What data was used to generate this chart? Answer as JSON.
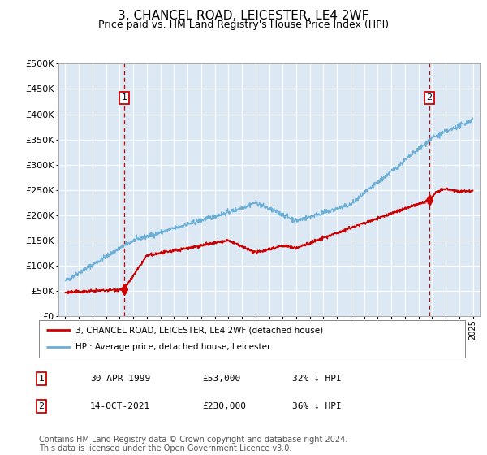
{
  "title": "3, CHANCEL ROAD, LEICESTER, LE4 2WF",
  "subtitle": "Price paid vs. HM Land Registry's House Price Index (HPI)",
  "title_fontsize": 11,
  "subtitle_fontsize": 9,
  "background_color": "#ffffff",
  "plot_bg_color": "#dce9f5",
  "grid_color": "#ffffff",
  "hpi_line_color": "#6baed6",
  "price_line_color": "#cc0000",
  "marker_color": "#cc0000",
  "dashed_line_color": "#cc0000",
  "ylim": [
    0,
    500000
  ],
  "yticks": [
    0,
    50000,
    100000,
    150000,
    200000,
    250000,
    300000,
    350000,
    400000,
    450000,
    500000
  ],
  "year_start": 1995,
  "year_end": 2025,
  "transaction1_year": 1999.33,
  "transaction1_price": 53000,
  "transaction2_year": 2021.79,
  "transaction2_price": 230000,
  "legend_label1": "3, CHANCEL ROAD, LEICESTER, LE4 2WF (detached house)",
  "legend_label2": "HPI: Average price, detached house, Leicester",
  "table_row1": [
    "1",
    "30-APR-1999",
    "£53,000",
    "32% ↓ HPI"
  ],
  "table_row2": [
    "2",
    "14-OCT-2021",
    "£230,000",
    "36% ↓ HPI"
  ],
  "footer_text": "Contains HM Land Registry data © Crown copyright and database right 2024.\nThis data is licensed under the Open Government Licence v3.0.",
  "footer_fontsize": 7
}
